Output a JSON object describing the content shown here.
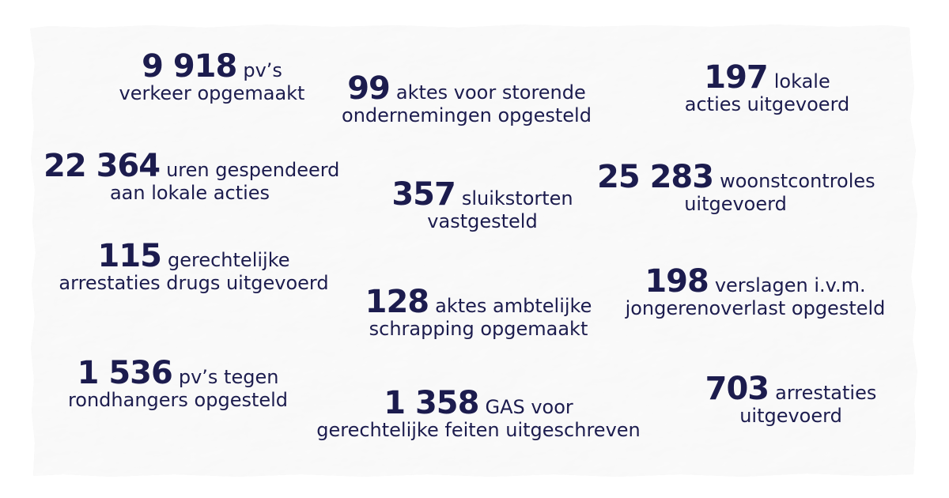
{
  "colors": {
    "text": "#1c1c4e",
    "paper": "#f1f1f1"
  },
  "stats": [
    {
      "number": "9 918",
      "line1": "pv’s",
      "line2": "verkeer opgemaakt"
    },
    {
      "number": "99",
      "line1": "aktes voor storende",
      "line2": "ondernemingen opgesteld"
    },
    {
      "number": "197",
      "line1": "lokale",
      "line2": "acties uitgevoerd"
    },
    {
      "number": "22 364",
      "line1": "uren gespendeerd",
      "line2": "aan lokale acties"
    },
    {
      "number": "357",
      "line1": "sluikstorten",
      "line2": "vastgesteld"
    },
    {
      "number": "25 283",
      "line1": "woonstcontroles",
      "line2": "uitgevoerd"
    },
    {
      "number": "115",
      "line1": "gerechtelijke",
      "line2": "arrestaties drugs uitgevoerd"
    },
    {
      "number": "128",
      "line1": "aktes ambtelijke",
      "line2": "schrapping opgemaakt"
    },
    {
      "number": "198",
      "line1": "verslagen i.v.m.",
      "line2": "jongerenoverlast opgesteld"
    },
    {
      "number": "1 536",
      "line1": "pv’s tegen",
      "line2": "rondhangers opgesteld"
    },
    {
      "number": "1 358",
      "line1": "GAS voor",
      "line2": "gerechtelijke feiten uitgeschreven"
    },
    {
      "number": "703",
      "line1": "arrestaties",
      "line2": "uitgevoerd"
    }
  ]
}
